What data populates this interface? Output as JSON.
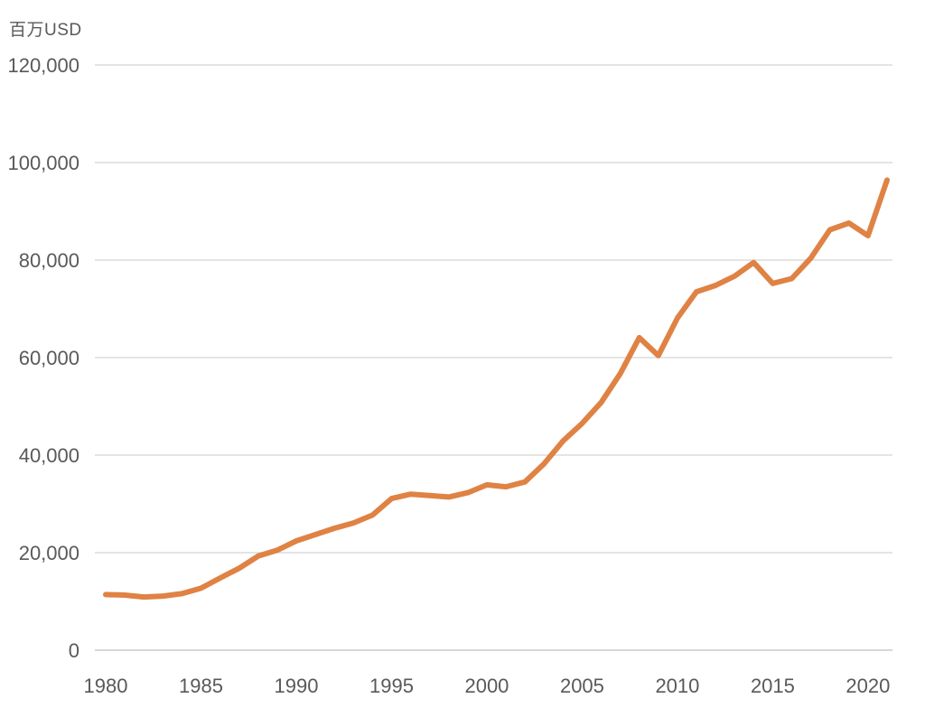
{
  "chart_data": {
    "type": "line",
    "unit_label": "百万USD",
    "title": "",
    "xlabel": "",
    "ylabel": "百万USD",
    "x": [
      1980,
      1981,
      1982,
      1983,
      1984,
      1985,
      1986,
      1987,
      1988,
      1989,
      1990,
      1991,
      1992,
      1993,
      1994,
      1995,
      1996,
      1997,
      1998,
      1999,
      2000,
      2001,
      2002,
      2003,
      2004,
      2005,
      2006,
      2007,
      2008,
      2009,
      2010,
      2011,
      2012,
      2013,
      2014,
      2015,
      2016,
      2017,
      2018,
      2019,
      2020,
      2021
    ],
    "series": [
      {
        "name": "value-million-usd",
        "values": [
          11400,
          11300,
          10900,
          11100,
          11600,
          12700,
          14800,
          16800,
          19300,
          20500,
          22400,
          23700,
          25000,
          26100,
          27700,
          31100,
          32000,
          31700,
          31400,
          32300,
          33900,
          33500,
          34500,
          38200,
          42900,
          46500,
          50800,
          56700,
          64100,
          60400,
          68100,
          73500,
          74800,
          76700,
          79500,
          75200,
          76200,
          80400,
          86200,
          87600,
          85000,
          96400
        ]
      }
    ],
    "xlim": [
      1980,
      2021
    ],
    "ylim": [
      0,
      120000
    ],
    "y_ticks": [
      "0",
      "20,000",
      "40,000",
      "60,000",
      "80,000",
      "100,000",
      "120,000"
    ],
    "x_ticks": [
      "1980",
      "1985",
      "1990",
      "1995",
      "2000",
      "2005",
      "2010",
      "2015",
      "2020"
    ],
    "grid": "horizontal-only",
    "legend": "none",
    "colors": {
      "line": "#DF8244",
      "grid": "#DCDCDC",
      "zero_line": "#CCCCCC",
      "text": "#595959",
      "background": "#FFFFFF"
    }
  }
}
